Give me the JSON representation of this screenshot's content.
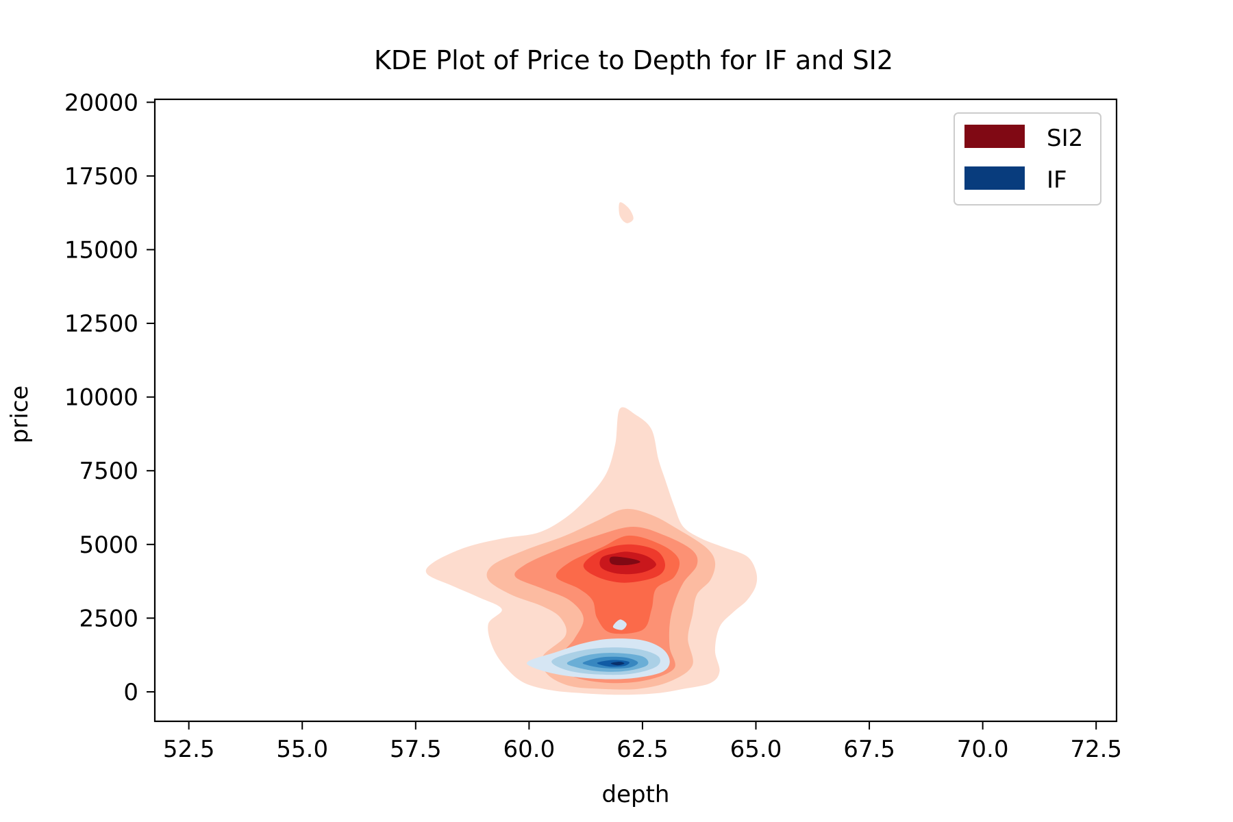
{
  "chart_data": {
    "type": "kde-contour",
    "title": "KDE Plot of Price to Depth for IF and SI2",
    "xlabel": "depth",
    "ylabel": "price",
    "xlim": [
      51.75,
      72.95
    ],
    "ylim": [
      -1000,
      20100
    ],
    "xticks": [
      52.5,
      55.0,
      57.5,
      60.0,
      62.5,
      65.0,
      67.5,
      70.0,
      72.5
    ],
    "xtick_labels": [
      "52.5",
      "55.0",
      "57.5",
      "60.0",
      "62.5",
      "65.0",
      "67.5",
      "70.0",
      "72.5"
    ],
    "yticks": [
      0,
      2500,
      5000,
      7500,
      10000,
      12500,
      15000,
      17500,
      20000
    ],
    "ytick_labels": [
      "0",
      "2500",
      "5000",
      "7500",
      "10000",
      "12500",
      "15000",
      "17500",
      "20000"
    ],
    "grid": false,
    "legend_position": "upper right",
    "series": [
      {
        "name": "SI2",
        "legend_color": "#800914",
        "colormap": [
          "#fddcce",
          "#fcbba1",
          "#fc9174",
          "#fb6a4a",
          "#ee3a2c",
          "#c9171c",
          "#800914"
        ],
        "contours": [
          {
            "level": 1,
            "points": [
              [
                62.0,
                9.6
              ],
              [
                62.35,
                9.4
              ],
              [
                62.7,
                8.9
              ],
              [
                62.85,
                7.9
              ],
              [
                63.0,
                7.2
              ],
              [
                63.2,
                6.3
              ],
              [
                63.4,
                5.6
              ],
              [
                63.8,
                5.2
              ],
              [
                64.3,
                4.9
              ],
              [
                64.8,
                4.6
              ],
              [
                65.0,
                4.1
              ],
              [
                65.0,
                3.6
              ],
              [
                64.8,
                3.1
              ],
              [
                64.5,
                2.7
              ],
              [
                64.2,
                2.2
              ],
              [
                64.1,
                1.4
              ],
              [
                64.2,
                0.7
              ],
              [
                64.0,
                0.3
              ],
              [
                63.4,
                0.1
              ],
              [
                62.8,
                -0.05
              ],
              [
                62.0,
                -0.1
              ],
              [
                61.2,
                -0.05
              ],
              [
                60.5,
                0.05
              ],
              [
                59.9,
                0.3
              ],
              [
                59.5,
                0.8
              ],
              [
                59.2,
                1.5
              ],
              [
                59.1,
                2.3
              ],
              [
                59.4,
                2.8
              ],
              [
                58.9,
                3.2
              ],
              [
                58.3,
                3.6
              ],
              [
                57.75,
                4.0
              ],
              [
                57.9,
                4.4
              ],
              [
                58.6,
                4.9
              ],
              [
                59.4,
                5.2
              ],
              [
                60.2,
                5.4
              ],
              [
                60.8,
                5.9
              ],
              [
                61.3,
                6.6
              ],
              [
                61.7,
                7.4
              ],
              [
                61.9,
                8.4
              ]
            ]
          },
          {
            "level": 2,
            "points": [
              [
                62.1,
                6.2
              ],
              [
                62.7,
                6.0
              ],
              [
                63.3,
                5.5
              ],
              [
                63.9,
                4.9
              ],
              [
                64.1,
                4.4
              ],
              [
                64.0,
                3.8
              ],
              [
                63.7,
                3.3
              ],
              [
                63.6,
                2.6
              ],
              [
                63.5,
                1.8
              ],
              [
                63.6,
                0.9
              ],
              [
                63.1,
                0.35
              ],
              [
                62.4,
                0.1
              ],
              [
                61.6,
                0.1
              ],
              [
                60.9,
                0.2
              ],
              [
                60.4,
                0.6
              ],
              [
                60.3,
                1.2
              ],
              [
                60.8,
                1.9
              ],
              [
                60.7,
                2.5
              ],
              [
                60.3,
                2.9
              ],
              [
                59.6,
                3.3
              ],
              [
                59.1,
                3.8
              ],
              [
                59.2,
                4.3
              ],
              [
                59.9,
                4.8
              ],
              [
                60.8,
                5.3
              ],
              [
                61.5,
                5.8
              ]
            ]
          },
          {
            "level": 3,
            "points": [
              [
                62.3,
                5.6
              ],
              [
                63.0,
                5.3
              ],
              [
                63.6,
                4.8
              ],
              [
                63.7,
                4.3
              ],
              [
                63.4,
                3.7
              ],
              [
                63.2,
                3.0
              ],
              [
                63.1,
                2.3
              ],
              [
                63.1,
                1.5
              ],
              [
                63.2,
                0.8
              ],
              [
                62.6,
                0.4
              ],
              [
                61.8,
                0.3
              ],
              [
                61.0,
                0.5
              ],
              [
                60.6,
                1.0
              ],
              [
                61.0,
                1.8
              ],
              [
                61.2,
                2.5
              ],
              [
                60.9,
                3.1
              ],
              [
                60.3,
                3.5
              ],
              [
                59.7,
                3.9
              ],
              [
                59.9,
                4.3
              ],
              [
                60.6,
                4.8
              ],
              [
                61.5,
                5.3
              ]
            ]
          },
          {
            "level": 4,
            "points": [
              [
                62.2,
                5.3
              ],
              [
                62.9,
                5.0
              ],
              [
                63.3,
                4.5
              ],
              [
                63.2,
                3.9
              ],
              [
                62.8,
                3.5
              ],
              [
                62.7,
                2.8
              ],
              [
                62.5,
                2.1
              ],
              [
                61.8,
                2.0
              ],
              [
                61.5,
                2.5
              ],
              [
                61.4,
                3.1
              ],
              [
                61.1,
                3.5
              ],
              [
                60.6,
                3.9
              ],
              [
                60.9,
                4.4
              ],
              [
                61.6,
                4.9
              ]
            ]
          },
          {
            "level": 5,
            "points": [
              [
                62.2,
                5.0
              ],
              [
                62.8,
                4.8
              ],
              [
                63.0,
                4.3
              ],
              [
                62.8,
                3.9
              ],
              [
                62.1,
                3.7
              ],
              [
                61.5,
                3.9
              ],
              [
                61.2,
                4.3
              ],
              [
                61.6,
                4.8
              ]
            ]
          },
          {
            "level": 6,
            "points": [
              [
                62.2,
                4.75
              ],
              [
                62.6,
                4.6
              ],
              [
                62.8,
                4.3
              ],
              [
                62.5,
                4.05
              ],
              [
                62.0,
                4.0
              ],
              [
                61.6,
                4.2
              ],
              [
                61.6,
                4.55
              ],
              [
                61.9,
                4.7
              ]
            ]
          },
          {
            "level": 7,
            "points": [
              [
                61.82,
                4.58
              ],
              [
                62.25,
                4.52
              ],
              [
                62.45,
                4.4
              ],
              [
                62.15,
                4.3
              ],
              [
                61.82,
                4.34
              ]
            ]
          },
          {
            "level": 1,
            "points": [
              [
                62.0,
                16.6
              ],
              [
                62.2,
                16.4
              ],
              [
                62.3,
                16.05
              ],
              [
                62.15,
                15.9
              ],
              [
                62.0,
                16.15
              ]
            ]
          }
        ]
      },
      {
        "name": "IF",
        "legend_color": "#083c7d",
        "colormap": [
          "#d6e6f4",
          "#abd0e6",
          "#6aaed6",
          "#3787c0",
          "#105ba4",
          "#08306b"
        ],
        "contours": [
          {
            "level": 1,
            "points": [
              [
                60.0,
                1.05
              ],
              [
                60.6,
                1.35
              ],
              [
                61.2,
                1.65
              ],
              [
                61.8,
                1.8
              ],
              [
                62.5,
                1.75
              ],
              [
                62.95,
                1.45
              ],
              [
                63.1,
                1.0
              ],
              [
                62.9,
                0.65
              ],
              [
                62.2,
                0.45
              ],
              [
                61.4,
                0.45
              ],
              [
                60.6,
                0.6
              ],
              [
                60.05,
                0.85
              ]
            ]
          },
          {
            "level": 2,
            "points": [
              [
                60.5,
                1.05
              ],
              [
                61.0,
                1.35
              ],
              [
                61.7,
                1.5
              ],
              [
                62.4,
                1.45
              ],
              [
                62.85,
                1.2
              ],
              [
                62.8,
                0.85
              ],
              [
                62.2,
                0.6
              ],
              [
                61.4,
                0.6
              ],
              [
                60.8,
                0.75
              ]
            ]
          },
          {
            "level": 3,
            "points": [
              [
                60.85,
                1.0
              ],
              [
                61.3,
                1.25
              ],
              [
                61.9,
                1.32
              ],
              [
                62.5,
                1.2
              ],
              [
                62.6,
                0.9
              ],
              [
                62.1,
                0.7
              ],
              [
                61.5,
                0.7
              ],
              [
                61.0,
                0.85
              ]
            ]
          },
          {
            "level": 4,
            "points": [
              [
                61.2,
                1.0
              ],
              [
                61.6,
                1.17
              ],
              [
                62.1,
                1.17
              ],
              [
                62.4,
                1.0
              ],
              [
                62.2,
                0.82
              ],
              [
                61.7,
                0.8
              ],
              [
                61.3,
                0.9
              ]
            ]
          },
          {
            "level": 5,
            "points": [
              [
                61.5,
                0.98
              ],
              [
                61.85,
                1.08
              ],
              [
                62.2,
                1.02
              ],
              [
                62.1,
                0.88
              ],
              [
                61.75,
                0.86
              ]
            ]
          },
          {
            "level": 6,
            "points": [
              [
                61.8,
                0.97
              ],
              [
                62.0,
                1.02
              ],
              [
                62.1,
                0.96
              ],
              [
                61.95,
                0.9
              ]
            ]
          },
          {
            "level": 1,
            "points": [
              [
                61.85,
                2.2
              ],
              [
                62.0,
                2.45
              ],
              [
                62.15,
                2.3
              ],
              [
                62.05,
                2.1
              ]
            ]
          }
        ]
      }
    ],
    "contour_price_unit": 1000
  }
}
